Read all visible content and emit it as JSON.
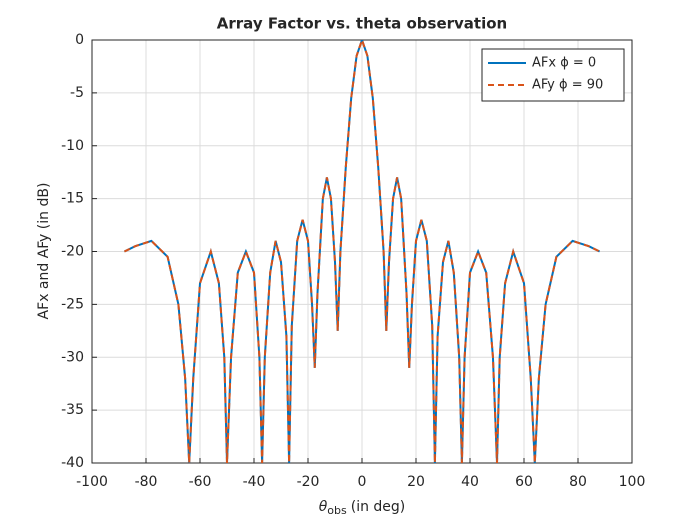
{
  "chart_data": {
    "type": "line",
    "title": "Array Factor vs. theta observation",
    "xlabel": {
      "symbol": "θ",
      "subscript": "obs",
      "text": "(in deg)"
    },
    "ylabel": "AFx and AFy (in dB)",
    "x": [
      -88,
      -84,
      -78,
      -72,
      -68,
      -65.5,
      -64,
      -62.5,
      -60,
      -56,
      -53,
      -51,
      -50,
      -48.5,
      -46,
      -43,
      -40,
      -38,
      -37,
      -36,
      -34,
      -32,
      -30,
      -28,
      -27,
      -26,
      -24,
      -22,
      -20,
      -18.5,
      -17.5,
      -16.5,
      -14.5,
      -13,
      -11.5,
      -10,
      -9,
      -8,
      -6,
      -4,
      -2,
      0,
      2,
      4,
      6,
      8,
      9,
      10,
      11.5,
      13,
      14.5,
      16.5,
      17.5,
      18.5,
      20,
      22,
      24,
      26,
      27,
      28,
      30,
      32,
      34,
      36,
      37,
      38,
      40,
      43,
      46,
      48.5,
      50,
      51,
      53,
      56,
      60,
      62.5,
      64,
      65.5,
      68,
      72,
      78,
      84,
      88
    ],
    "series": [
      {
        "name": "AFx ϕ = 0",
        "color": "#0072BD",
        "dash": "solid",
        "values": [
          -20,
          -19.5,
          -19,
          -20.5,
          -25,
          -32,
          -40,
          -32,
          -23,
          -20,
          -23,
          -30,
          -40,
          -30,
          -22,
          -20,
          -22,
          -30,
          -40,
          -30,
          -22,
          -19,
          -21,
          -28,
          -40,
          -27,
          -19,
          -17,
          -19,
          -25,
          -31,
          -24,
          -15,
          -13,
          -15,
          -21,
          -27.5,
          -20,
          -12,
          -5.5,
          -1.5,
          0,
          -1.5,
          -5.5,
          -12,
          -20,
          -27.5,
          -21,
          -15,
          -13,
          -15,
          -24,
          -31,
          -25,
          -19,
          -17,
          -19,
          -27,
          -40,
          -28,
          -21,
          -19,
          -22,
          -30,
          -40,
          -30,
          -22,
          -20,
          -22,
          -30,
          -40,
          -30,
          -23,
          -20,
          -23,
          -32,
          -40,
          -32,
          -25,
          -20.5,
          -19,
          -19.5,
          -20
        ]
      },
      {
        "name": "AFy ϕ = 90",
        "color": "#D95319",
        "dash": "dashed",
        "values": [
          -20,
          -19.5,
          -19,
          -20.5,
          -25,
          -32,
          -40,
          -32,
          -23,
          -20,
          -23,
          -30,
          -40,
          -30,
          -22,
          -20,
          -22,
          -30,
          -40,
          -30,
          -22,
          -19,
          -21,
          -28,
          -40,
          -27,
          -19,
          -17,
          -19,
          -25,
          -31,
          -24,
          -15,
          -13,
          -15,
          -21,
          -27.5,
          -20,
          -12,
          -5.5,
          -1.5,
          0,
          -1.5,
          -5.5,
          -12,
          -20,
          -27.5,
          -21,
          -15,
          -13,
          -15,
          -24,
          -31,
          -25,
          -19,
          -17,
          -19,
          -27,
          -40,
          -28,
          -21,
          -19,
          -22,
          -30,
          -40,
          -30,
          -22,
          -20,
          -22,
          -30,
          -40,
          -30,
          -23,
          -20,
          -23,
          -32,
          -40,
          -32,
          -25,
          -20.5,
          -19,
          -19.5,
          -20
        ]
      }
    ],
    "xlim": [
      -100,
      100
    ],
    "xticks": [
      -100,
      -80,
      -60,
      -40,
      -20,
      0,
      20,
      40,
      60,
      80,
      100
    ],
    "ylim": [
      -40,
      0
    ],
    "yticks": [
      -40,
      -35,
      -30,
      -25,
      -20,
      -15,
      -10,
      -5,
      0
    ],
    "grid": true,
    "legend": "northeast"
  }
}
